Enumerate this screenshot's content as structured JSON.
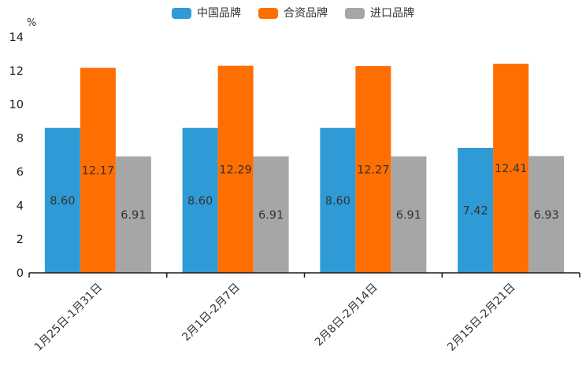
{
  "chart_data": {
    "type": "bar",
    "title": "",
    "ylabel": "%",
    "xlabel": "",
    "ylim": [
      0,
      14
    ],
    "yticks": [
      0,
      2,
      4,
      6,
      8,
      10,
      12,
      14
    ],
    "grid": false,
    "legend_position": "top",
    "value_labels": true,
    "value_label_decimals": 2,
    "categories": [
      "1月25日-1月31日",
      "2月1日-2月7日",
      "2月8日-2月14日",
      "2月15日-2月21日"
    ],
    "series": [
      {
        "name": "中国品牌",
        "color": "#2e9bd6",
        "values": [
          8.6,
          8.6,
          8.6,
          7.42
        ]
      },
      {
        "name": "合资品牌",
        "color": "#ff6e00",
        "values": [
          12.17,
          12.29,
          12.27,
          12.41
        ]
      },
      {
        "name": "进口品牌",
        "color": "#a6a6a6",
        "values": [
          6.91,
          6.91,
          6.91,
          6.93
        ]
      }
    ]
  },
  "colors": {
    "background": "#ffffff",
    "text": "#333333",
    "axis": "#1a1a1a"
  }
}
